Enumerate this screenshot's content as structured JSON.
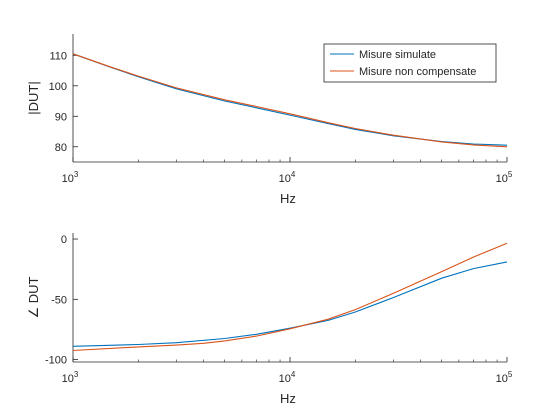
{
  "colors": {
    "series1": "#0072bd",
    "series2": "#d95319",
    "axis": "#262626"
  },
  "chart_data": [
    {
      "type": "line",
      "xscale": "log",
      "xlim": [
        1000,
        100000
      ],
      "ylim": [
        75,
        117
      ],
      "xlabel": "Hz",
      "ylabel": "|DUT|",
      "xticks": [
        {
          "base": "10",
          "exp": "3",
          "value": 1000
        },
        {
          "base": "10",
          "exp": "4",
          "value": 10000
        },
        {
          "base": "10",
          "exp": "5",
          "value": 100000
        }
      ],
      "yticks": [
        {
          "label": "80",
          "value": 80
        },
        {
          "label": "90",
          "value": 90
        },
        {
          "label": "100",
          "value": 100
        },
        {
          "label": "110",
          "value": 110
        }
      ],
      "legend": {
        "placement": "top-right"
      },
      "series": [
        {
          "name": "Misure simulate",
          "x": [
            1000,
            1500,
            2000,
            3000,
            5000,
            7000,
            10000,
            15000,
            20000,
            30000,
            50000,
            70000,
            100000
          ],
          "y": [
            110.5,
            106.0,
            103.0,
            99.0,
            95.0,
            92.8,
            90.4,
            87.6,
            85.7,
            83.6,
            81.7,
            80.9,
            80.5
          ]
        },
        {
          "name": "Misure non compensate",
          "x": [
            1000,
            1500,
            2000,
            3000,
            5000,
            7000,
            10000,
            15000,
            20000,
            30000,
            50000,
            70000,
            100000
          ],
          "y": [
            110.5,
            106.1,
            103.2,
            99.3,
            95.4,
            93.2,
            90.8,
            87.9,
            86.0,
            83.8,
            81.6,
            80.6,
            80.0
          ]
        }
      ]
    },
    {
      "type": "line",
      "xscale": "log",
      "xlim": [
        1000,
        100000
      ],
      "ylim": [
        -102,
        5
      ],
      "xlabel": "Hz",
      "ylabel": "∠ DUT",
      "xticks": [
        {
          "base": "10",
          "exp": "3",
          "value": 1000
        },
        {
          "base": "10",
          "exp": "4",
          "value": 10000
        },
        {
          "base": "10",
          "exp": "5",
          "value": 100000
        }
      ],
      "yticks": [
        {
          "label": "-100",
          "value": -100
        },
        {
          "label": "-50",
          "value": -50
        },
        {
          "label": "0",
          "value": 0
        }
      ],
      "series": [
        {
          "x": [
            1000,
            2000,
            3000,
            5000,
            7000,
            10000,
            15000,
            20000,
            30000,
            50000,
            70000,
            100000
          ],
          "y": [
            -89.0,
            -87.5,
            -86.0,
            -82.5,
            -79.0,
            -74.0,
            -67.5,
            -60.5,
            -48.5,
            -32.5,
            -24.5,
            -19.0
          ]
        },
        {
          "x": [
            1000,
            2000,
            3000,
            4000,
            5000,
            7000,
            10000,
            15000,
            20000,
            30000,
            50000,
            70000,
            100000
          ],
          "y": [
            -92.5,
            -89.5,
            -88.0,
            -86.5,
            -84.5,
            -80.5,
            -74.5,
            -66.5,
            -58.5,
            -45.0,
            -27.0,
            -15.0,
            -3.5
          ]
        }
      ]
    }
  ]
}
